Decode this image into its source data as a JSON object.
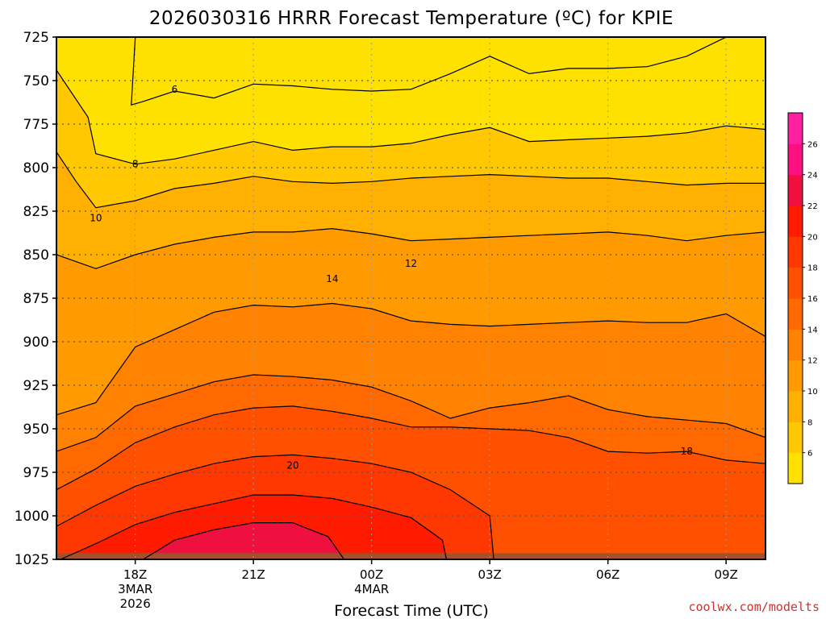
{
  "chart_data": {
    "type": "heatmap",
    "title": "2026030316 HRRR Forecast Temperature (ºC) for KPIE",
    "xlabel": "Forecast Time (UTC)",
    "ylabel": "",
    "credit": "coolwx.com/modelts",
    "y_axis": {
      "unit": "hPa",
      "reversed": true,
      "range": [
        725,
        1025
      ],
      "ticks": [
        725,
        750,
        775,
        800,
        825,
        850,
        875,
        900,
        925,
        950,
        975,
        1000,
        1025
      ]
    },
    "x_axis": {
      "range_hours_utc": [
        16,
        34
      ],
      "ticks": [
        {
          "hour": 18,
          "lines": [
            "18Z",
            "3MAR",
            "2026"
          ]
        },
        {
          "hour": 21,
          "lines": [
            "21Z"
          ]
        },
        {
          "hour": 24,
          "lines": [
            "00Z",
            "4MAR"
          ]
        },
        {
          "hour": 27,
          "lines": [
            "03Z"
          ]
        },
        {
          "hour": 30,
          "lines": [
            "06Z"
          ]
        },
        {
          "hour": 33,
          "lines": [
            "09Z"
          ]
        }
      ]
    },
    "grid": true,
    "colorbar": {
      "placement": "right",
      "levels": [
        4,
        6,
        8,
        10,
        12,
        14,
        16,
        18,
        20,
        22,
        24,
        26,
        28
      ],
      "tick_labels": [
        6,
        8,
        10,
        12,
        14,
        16,
        18,
        20,
        22,
        24,
        26
      ],
      "colors": [
        "#ffe100",
        "#ffc800",
        "#ffb000",
        "#ff9b00",
        "#ff8200",
        "#ff6900",
        "#ff5000",
        "#ff3700",
        "#ff1a00",
        "#f01040",
        "#ff1080",
        "#ff1fa0"
      ]
    },
    "contour_levels": [
      6,
      8,
      10,
      12,
      14,
      16,
      18,
      20,
      22,
      24
    ],
    "contours": [
      {
        "level": 24,
        "label": null,
        "points": [
          [
            18.2,
            1025
          ],
          [
            19.0,
            1014
          ],
          [
            20.0,
            1008
          ],
          [
            21.0,
            1004
          ],
          [
            22.0,
            1004
          ],
          [
            22.9,
            1012
          ],
          [
            23.3,
            1025
          ]
        ]
      },
      {
        "level": 22,
        "label": null,
        "points": [
          [
            16.1,
            1025
          ],
          [
            17.0,
            1016
          ],
          [
            18.0,
            1005
          ],
          [
            19.0,
            998
          ],
          [
            20.0,
            993
          ],
          [
            21.0,
            988
          ],
          [
            22.0,
            988
          ],
          [
            23.0,
            990
          ],
          [
            24.0,
            995
          ],
          [
            25.0,
            1001
          ],
          [
            25.8,
            1014
          ],
          [
            25.9,
            1025
          ]
        ]
      },
      {
        "level": 20,
        "label": "20",
        "label_at": [
          22.0,
          971
        ],
        "points": [
          [
            16.0,
            1006
          ],
          [
            17.0,
            994
          ],
          [
            18.0,
            983
          ],
          [
            19.0,
            976
          ],
          [
            20.0,
            970
          ],
          [
            21.0,
            966
          ],
          [
            22.0,
            965
          ],
          [
            23.0,
            967
          ],
          [
            24.0,
            970
          ],
          [
            25.0,
            975
          ],
          [
            26.0,
            985
          ],
          [
            27.0,
            1000
          ],
          [
            27.1,
            1025
          ]
        ]
      },
      {
        "level": 18,
        "label": "18",
        "label_at": [
          32.0,
          963
        ],
        "points": [
          [
            16.0,
            985
          ],
          [
            17.0,
            973
          ],
          [
            18.0,
            958
          ],
          [
            19.0,
            949
          ],
          [
            20.0,
            942
          ],
          [
            21.0,
            938
          ],
          [
            22.0,
            937
          ],
          [
            23.0,
            940
          ],
          [
            24.0,
            944
          ],
          [
            25.0,
            949
          ],
          [
            26.0,
            949
          ],
          [
            27.0,
            950
          ],
          [
            28.0,
            951
          ],
          [
            29.0,
            955
          ],
          [
            30.0,
            963
          ],
          [
            31.0,
            964
          ],
          [
            32.0,
            963
          ],
          [
            33.0,
            968
          ],
          [
            34.0,
            970
          ]
        ]
      },
      {
        "level": 16,
        "label": null,
        "points": [
          [
            16.0,
            963
          ],
          [
            17.0,
            955
          ],
          [
            18.0,
            937
          ],
          [
            19.0,
            930
          ],
          [
            20.0,
            923
          ],
          [
            21.0,
            919
          ],
          [
            22.0,
            920
          ],
          [
            23.0,
            922
          ],
          [
            24.0,
            926
          ],
          [
            25.0,
            934
          ],
          [
            26.0,
            944
          ],
          [
            27.0,
            938
          ],
          [
            28.0,
            935
          ],
          [
            29.0,
            931
          ],
          [
            30.0,
            939
          ],
          [
            31.0,
            943
          ],
          [
            32.0,
            945
          ],
          [
            33.0,
            947
          ],
          [
            34.0,
            955
          ]
        ]
      },
      {
        "level": 14,
        "label": "14",
        "label_at": [
          23.0,
          864
        ],
        "points": [
          [
            16.0,
            942
          ],
          [
            17.0,
            935
          ],
          [
            18.0,
            903
          ],
          [
            19.0,
            893
          ],
          [
            20.0,
            883
          ],
          [
            21.0,
            879
          ],
          [
            22.0,
            880
          ],
          [
            23.0,
            878
          ],
          [
            24.0,
            881
          ],
          [
            25.0,
            888
          ],
          [
            26.0,
            890
          ],
          [
            27.0,
            891
          ],
          [
            28.0,
            890
          ],
          [
            29.0,
            889
          ],
          [
            30.0,
            888
          ],
          [
            31.0,
            889
          ],
          [
            32.0,
            889
          ],
          [
            33.0,
            884
          ],
          [
            34.0,
            897
          ]
        ]
      },
      {
        "level": 12,
        "label": "12",
        "label_at": [
          25.0,
          855
        ],
        "points": [
          [
            16.0,
            850
          ],
          [
            17.0,
            858
          ],
          [
            18.0,
            850
          ],
          [
            19.0,
            844
          ],
          [
            20.0,
            840
          ],
          [
            21.0,
            837
          ],
          [
            22.0,
            837
          ],
          [
            23.0,
            835
          ],
          [
            24.0,
            838
          ],
          [
            25.0,
            842
          ],
          [
            26.0,
            841
          ],
          [
            27.0,
            840
          ],
          [
            28.0,
            839
          ],
          [
            29.0,
            838
          ],
          [
            30.0,
            837
          ],
          [
            31.0,
            839
          ],
          [
            32.0,
            842
          ],
          [
            33.0,
            839
          ],
          [
            34.0,
            837
          ]
        ]
      },
      {
        "level": 10,
        "label": "10",
        "label_at": [
          17.0,
          829
        ],
        "points": [
          [
            16.0,
            791
          ],
          [
            16.5,
            808
          ],
          [
            17.0,
            823
          ],
          [
            18.0,
            819
          ],
          [
            19.0,
            812
          ],
          [
            20.0,
            809
          ],
          [
            21.0,
            805
          ],
          [
            22.0,
            808
          ],
          [
            23.0,
            809
          ],
          [
            24.0,
            808
          ],
          [
            25.0,
            806
          ],
          [
            26.0,
            805
          ],
          [
            27.0,
            804
          ],
          [
            28.0,
            805
          ],
          [
            29.0,
            806
          ],
          [
            30.0,
            806
          ],
          [
            31.0,
            808
          ],
          [
            32.0,
            810
          ],
          [
            33.0,
            809
          ],
          [
            34.0,
            809
          ]
        ]
      },
      {
        "level": 8,
        "label": "8",
        "label_at": [
          18.0,
          798
        ],
        "points": [
          [
            16.0,
            744
          ],
          [
            16.8,
            771
          ],
          [
            17.0,
            792
          ],
          [
            18.0,
            798
          ],
          [
            19.0,
            795
          ],
          [
            20.0,
            790
          ],
          [
            21.0,
            785
          ],
          [
            22.0,
            790
          ],
          [
            23.0,
            788
          ],
          [
            24.0,
            788
          ],
          [
            25.0,
            786
          ],
          [
            26.0,
            781
          ],
          [
            27.0,
            777
          ],
          [
            28.0,
            785
          ],
          [
            29.0,
            784
          ],
          [
            30.0,
            783
          ],
          [
            31.0,
            782
          ],
          [
            32.0,
            780
          ],
          [
            33.0,
            776
          ],
          [
            34.0,
            778
          ]
        ]
      },
      {
        "level": 6,
        "label": "6",
        "label_at": [
          19.0,
          755
        ],
        "points": [
          [
            18.0,
            725
          ],
          [
            17.9,
            764
          ],
          [
            18.2,
            762
          ],
          [
            19.0,
            756
          ],
          [
            20.0,
            760
          ],
          [
            21.0,
            752
          ],
          [
            22.0,
            753
          ],
          [
            23.0,
            755
          ],
          [
            24.0,
            756
          ],
          [
            25.0,
            755
          ],
          [
            26.0,
            746
          ],
          [
            27.0,
            736
          ],
          [
            28.0,
            746
          ],
          [
            29.0,
            743
          ],
          [
            30.0,
            743
          ],
          [
            31.0,
            742
          ],
          [
            32.0,
            736
          ],
          [
            33.0,
            725
          ]
        ]
      }
    ],
    "ground": {
      "color": "#a0522d",
      "top_hpa": 1021.5
    }
  }
}
